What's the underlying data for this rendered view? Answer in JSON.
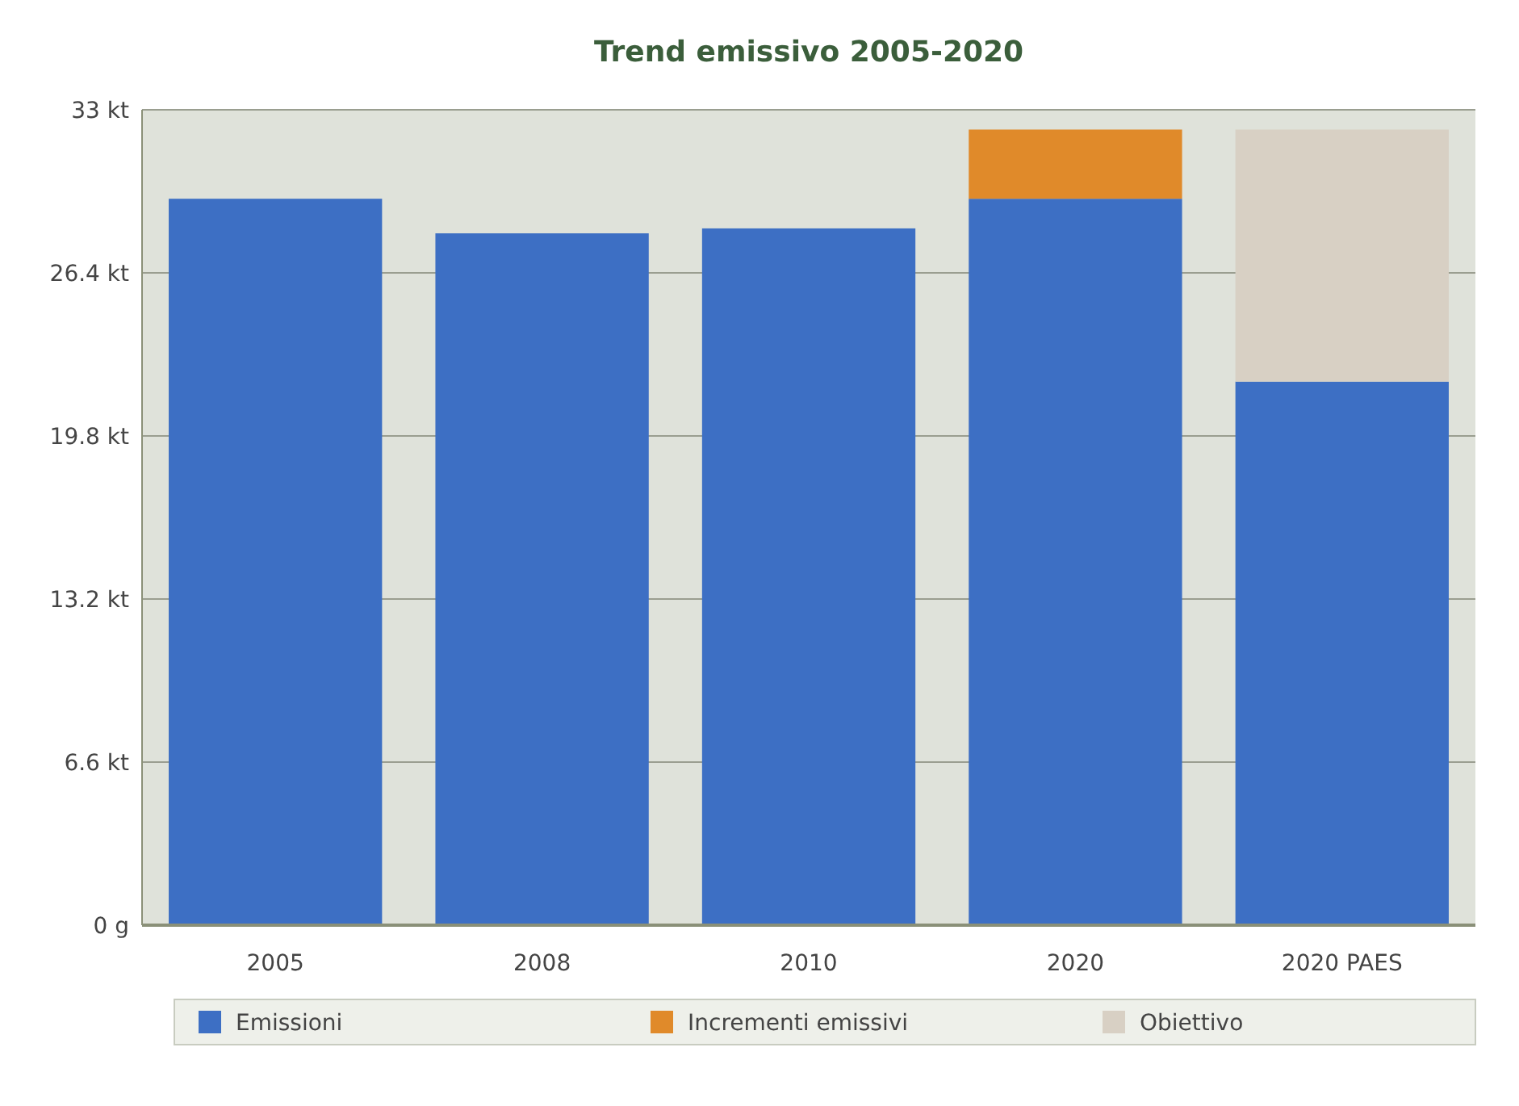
{
  "chart_data": {
    "type": "bar",
    "title": "Trend emissivo 2005-2020",
    "categories": [
      "2005",
      "2008",
      "2010",
      "2020",
      "2020 PAES"
    ],
    "stacked": true,
    "series": [
      {
        "name": "Emissioni",
        "color": "#3d6fc4",
        "values": [
          29.4,
          28.0,
          28.2,
          29.4,
          22.0
        ]
      },
      {
        "name": "Incrementi emissivi",
        "color": "#e08a2a",
        "values": [
          null,
          null,
          null,
          2.8,
          null
        ]
      },
      {
        "name": "Obiettivo",
        "color": "#d8d0c4",
        "values": [
          null,
          null,
          null,
          null,
          10.2
        ]
      }
    ],
    "ylim": [
      0,
      33
    ],
    "yticks": [
      {
        "value": 0,
        "label": "0 g"
      },
      {
        "value": 6.6,
        "label": "6.6 kt"
      },
      {
        "value": 13.2,
        "label": "13.2 kt"
      },
      {
        "value": 19.8,
        "label": "19.8 kt"
      },
      {
        "value": 26.4,
        "label": "26.4 kt"
      },
      {
        "value": 33,
        "label": "33 kt"
      }
    ],
    "grid": "y",
    "legend": "bottom"
  }
}
